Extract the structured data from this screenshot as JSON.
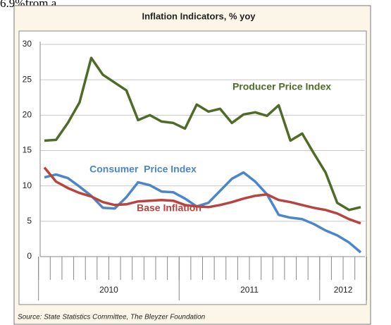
{
  "context_text": "6.9%from a",
  "chart_data": {
    "type": "line",
    "title": "Inflation Indicators, % yoy",
    "source": "Source: State Statistics Committee, The Bleyzer Foundation",
    "categories": [
      null,
      null,
      null,
      null,
      null,
      null,
      null,
      null,
      null,
      null,
      null,
      null,
      null,
      null,
      null,
      null,
      null,
      null,
      null,
      null,
      null,
      null,
      null,
      null,
      null,
      null,
      null,
      null
    ],
    "year_groups": [
      {
        "label": "2010",
        "start": 0,
        "end": 11
      },
      {
        "label": "2011",
        "start": 12,
        "end": 23
      },
      {
        "label": "2012",
        "start": 24,
        "end": 27
      }
    ],
    "ylim": [
      0,
      30
    ],
    "yticks": [
      0,
      5,
      10,
      15,
      20,
      25,
      30
    ],
    "grid": true,
    "series": [
      {
        "name": "Producer Price Index",
        "color": "#4f6b28",
        "values": [
          16.4,
          16.5,
          18.9,
          21.8,
          28.1,
          25.7,
          24.6,
          23.5,
          19.3,
          20.0,
          19.1,
          18.9,
          18.1,
          21.5,
          20.5,
          20.9,
          18.9,
          20.1,
          20.4,
          19.9,
          21.4,
          16.4,
          17.4,
          14.6,
          11.9,
          7.6,
          6.6,
          7.0
        ]
      },
      {
        "name": "Consumer  Price Index",
        "color": "#4a86c8",
        "values": [
          11.2,
          11.6,
          11.1,
          9.9,
          8.6,
          6.9,
          6.8,
          8.4,
          10.5,
          10.1,
          9.2,
          9.1,
          8.2,
          7.1,
          7.6,
          9.3,
          11.0,
          11.9,
          10.6,
          8.8,
          5.9,
          5.5,
          5.3,
          4.6,
          3.7,
          3.0,
          2.0,
          0.6
        ]
      },
      {
        "name": "Base Inflation",
        "color": "#b8433f",
        "values": [
          12.6,
          10.6,
          9.7,
          9.0,
          8.5,
          7.7,
          7.3,
          7.4,
          7.8,
          7.9,
          8.0,
          7.9,
          7.3,
          7.1,
          7.0,
          7.3,
          7.7,
          8.2,
          8.6,
          8.8,
          8.0,
          7.7,
          7.3,
          6.9,
          6.6,
          6.1,
          5.3,
          4.7
        ]
      }
    ]
  }
}
